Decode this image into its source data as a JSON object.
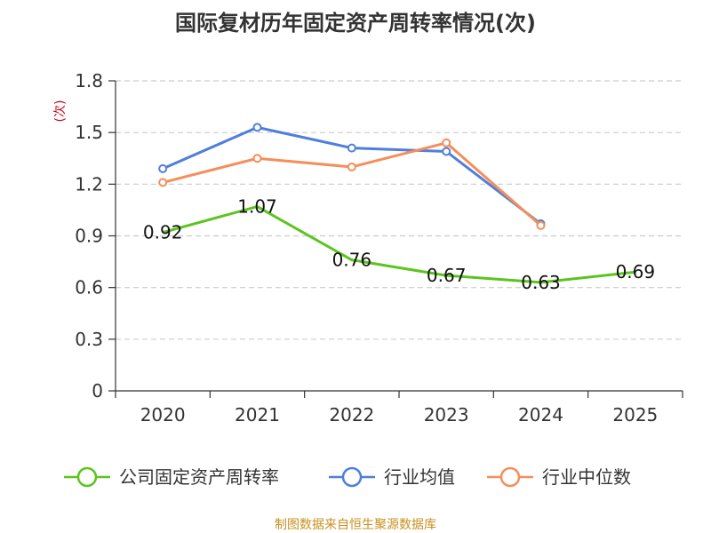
{
  "chart_data": {
    "type": "line",
    "title": "国际复材历年固定资产周转率情况(次)",
    "ylabel": "(次)",
    "xlabel": "",
    "categories": [
      "2020",
      "2021",
      "2022",
      "2023",
      "2024",
      "2025"
    ],
    "y_ticks": [
      "0",
      "0.3",
      "0.6",
      "0.9",
      "1.2",
      "1.5",
      "1.8"
    ],
    "ylim": [
      0,
      1.8
    ],
    "grid": true,
    "legend_position": "bottom",
    "series": [
      {
        "name": "公司固定资产周转率",
        "color": "#5cc41f",
        "values": [
          0.92,
          1.07,
          0.76,
          0.67,
          0.63,
          0.69
        ],
        "labels": [
          "0.92",
          "1.07",
          "0.76",
          "0.67",
          "0.63",
          "0.69"
        ],
        "markers": false
      },
      {
        "name": "行业均值",
        "color": "#4f7fdb",
        "values": [
          1.29,
          1.53,
          1.41,
          1.39,
          0.97,
          null
        ],
        "markers": true
      },
      {
        "name": "行业中位数",
        "color": "#f58e5a",
        "values": [
          1.21,
          1.35,
          1.3,
          1.44,
          0.96,
          null
        ],
        "markers": true
      }
    ],
    "source": "制图数据来自恒生聚源数据库",
    "colors": {
      "axis": "#333333",
      "grid": "#cccccc",
      "ylabel": "#d0021b",
      "source": "#c8901f"
    }
  }
}
